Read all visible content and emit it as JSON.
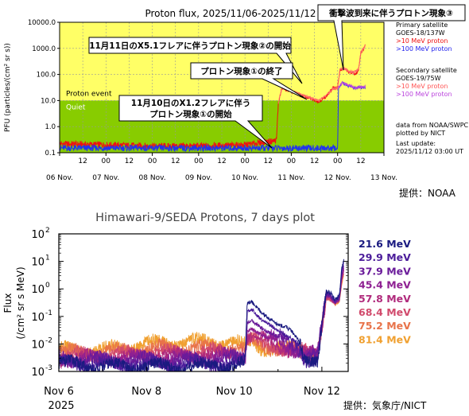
{
  "chart_data": [
    {
      "type": "line",
      "title": "Proton flux, 2025/11/06-2025/11/12",
      "ylabel": "PFU (particles/(cm² sr s))",
      "y_scale": "log",
      "ylim": [
        0.1,
        10000
      ],
      "y_ticks": [
        "0.1",
        "1.0",
        "10.0",
        "100.0",
        "1000.0",
        "10000.0"
      ],
      "x_major_labels": [
        "06 Nov.",
        "07 Nov.",
        "08 Nov.",
        "09 Nov.",
        "10 Nov.",
        "11 Nov.",
        "12 Nov.",
        "13 Nov."
      ],
      "x_minor_label": "12",
      "x_minor_label_short": "00",
      "xlim_days": [
        0,
        7
      ],
      "bands": [
        {
          "label": "Proton event",
          "from": 10,
          "to": 10000,
          "color": "#ffff66"
        },
        {
          "label": "Quiet",
          "from": 0.1,
          "to": 10,
          "color": "#88cc00"
        }
      ],
      "legend": {
        "primary_title": "Primary satellite",
        "primary_sat": "GOES-18/137W",
        "secondary_title": "Secondary satellite",
        "secondary_sat": "GOES-19/75W",
        "s10": ">10 MeV proton",
        "s100": ">100 MeV proton",
        "source1": "data from NOAA/SWPC",
        "source2": "plotted by NICT",
        "update1": "Last update:",
        "update2": "2025/11/12 03:00 UT"
      },
      "series": [
        {
          "name": ">10 MeV proton",
          "color": "#ee1111",
          "x": [
            0,
            1,
            2,
            3,
            4,
            4.6,
            4.68,
            4.72,
            4.8,
            5.0,
            5.2,
            5.4,
            5.6,
            5.75,
            5.9,
            6.0,
            6.05,
            6.15,
            6.25,
            6.35,
            6.4,
            6.45,
            6.5,
            6.55,
            6.6
          ],
          "y": [
            0.22,
            0.2,
            0.18,
            0.18,
            0.2,
            0.28,
            0.3,
            8,
            30,
            22,
            16,
            12,
            9,
            14,
            30,
            32,
            150,
            160,
            120,
            110,
            100,
            150,
            700,
            900,
            1300
          ]
        },
        {
          "name": ">100 MeV proton",
          "color": "#2233ee",
          "x": [
            0,
            1,
            2,
            3,
            4,
            4.6,
            4.68,
            4.72,
            4.9,
            5.2,
            5.5,
            5.7,
            5.75,
            5.85,
            5.92,
            5.97,
            6.0,
            6.02,
            6.1,
            6.2,
            6.3,
            6.35,
            6.4,
            6.5,
            6.6
          ],
          "y": [
            0.15,
            0.15,
            0.15,
            0.15,
            0.15,
            0.15,
            0.15,
            0.15,
            0.15,
            0.15,
            0.15,
            0.15,
            0.15,
            0.15,
            0.15,
            0.15,
            0.15,
            30,
            48,
            38,
            35,
            30,
            30,
            32,
            32
          ]
        },
        {
          "name": ">10 MeV proton (secondary)",
          "color": "#ff6a6a",
          "x": [
            4.72,
            4.8,
            5.0,
            5.2,
            5.4,
            5.6,
            5.75,
            5.9,
            6.0,
            6.05,
            6.15,
            6.25,
            6.35,
            6.45,
            6.5,
            6.55,
            6.6
          ],
          "y": [
            8,
            32,
            24,
            17,
            13,
            10,
            15,
            28,
            30,
            160,
            170,
            130,
            118,
            160,
            720,
            950,
            1400
          ]
        },
        {
          "name": ">100 MeV proton (secondary)",
          "color": "#bb44dd",
          "x": [
            6.02,
            6.1,
            6.2,
            6.3,
            6.35,
            6.4,
            6.5,
            6.6
          ],
          "y": [
            32,
            50,
            40,
            36,
            31,
            31,
            33,
            34
          ]
        }
      ],
      "annotations": [
        "11月11日のX5.1フレアに伴うプロトン現象②の開始",
        "プロトン現象①の終了",
        "衝撃波到来に伴うプロトン現象③",
        "11月10日のX1.2フレアに伴う",
        "プロトン現象①の開始"
      ],
      "credit": "提供：NOAA"
    },
    {
      "type": "line",
      "title": "Himawari-9/SEDA Protons, 7 days plot",
      "ylabel_line1": "Flux",
      "ylabel_line2": "(/cm² sr s MeV)",
      "y_scale": "log",
      "ylim": [
        0.001,
        100
      ],
      "y_tick_exps": [
        "2",
        "1",
        "0",
        "-1",
        "-2",
        "-3"
      ],
      "y_tick_base": "10",
      "x_labels": [
        "Nov 6",
        "Nov 8",
        "Nov 10",
        "Nov 12"
      ],
      "x_sublabel": "2025",
      "xlim_days": [
        0,
        6.6
      ],
      "series": [
        {
          "name": "21.6 MeV",
          "color": "#1a1a80",
          "x": [
            0,
            1,
            2,
            3,
            4,
            4.25,
            4.3,
            4.4,
            4.6,
            4.8,
            5.0,
            5.2,
            5.3,
            5.4,
            5.5,
            5.6,
            5.9,
            6.1,
            6.2,
            6.3,
            6.4,
            6.45,
            6.5
          ],
          "y": [
            0.002,
            0.0015,
            0.0015,
            0.0015,
            0.0018,
            0.002,
            0.3,
            0.35,
            0.15,
            0.08,
            0.05,
            0.04,
            0.03,
            0.02,
            0.01,
            0.003,
            0.003,
            0.8,
            0.7,
            0.4,
            0.6,
            5,
            12
          ]
        },
        {
          "name": "29.9 MeV",
          "color": "#4b1c9a",
          "x": [
            0,
            1,
            2,
            3,
            4,
            4.25,
            4.3,
            4.4,
            4.6,
            4.8,
            5.0,
            5.2,
            5.4,
            5.5,
            5.6,
            5.9,
            6.1,
            6.2,
            6.3,
            6.4,
            6.45,
            6.5
          ],
          "y": [
            0.002,
            0.0018,
            0.0018,
            0.0018,
            0.002,
            0.002,
            0.15,
            0.18,
            0.08,
            0.05,
            0.03,
            0.02,
            0.012,
            0.008,
            0.003,
            0.003,
            0.7,
            0.6,
            0.35,
            0.5,
            4,
            9
          ]
        },
        {
          "name": "37.9 MeV",
          "color": "#6a1b9a",
          "x": [
            0,
            1,
            2,
            3,
            4,
            4.25,
            4.3,
            4.4,
            4.6,
            4.8,
            5.0,
            5.2,
            5.4,
            5.5,
            5.6,
            5.9,
            6.1,
            6.2,
            6.3,
            6.4,
            6.45,
            6.5
          ],
          "y": [
            0.003,
            0.0025,
            0.0025,
            0.0025,
            0.003,
            0.003,
            0.06,
            0.07,
            0.04,
            0.025,
            0.018,
            0.012,
            0.008,
            0.006,
            0.004,
            0.004,
            0.6,
            0.55,
            0.33,
            0.45,
            3,
            7
          ]
        },
        {
          "name": "45.4 MeV",
          "color": "#8e1f92",
          "x": [
            0,
            1,
            2,
            3,
            4,
            4.25,
            4.3,
            4.4,
            4.6,
            4.8,
            5.0,
            5.2,
            5.4,
            5.5,
            5.6,
            5.9,
            6.1,
            6.2,
            6.3,
            6.4,
            6.45,
            6.5
          ],
          "y": [
            0.003,
            0.0028,
            0.003,
            0.003,
            0.0035,
            0.003,
            0.03,
            0.035,
            0.022,
            0.016,
            0.012,
            0.009,
            0.007,
            0.006,
            0.004,
            0.004,
            0.55,
            0.5,
            0.32,
            0.42,
            2.5,
            6
          ]
        },
        {
          "name": "57.8 MeV",
          "color": "#b02a7c",
          "x": [
            0,
            1,
            2,
            3,
            4,
            4.25,
            4.3,
            4.4,
            4.6,
            4.8,
            5.0,
            5.2,
            5.4,
            5.5,
            5.6,
            5.9,
            6.1,
            6.2,
            6.3,
            6.4,
            6.45,
            6.5
          ],
          "y": [
            0.003,
            0.003,
            0.0035,
            0.004,
            0.004,
            0.004,
            0.018,
            0.02,
            0.014,
            0.011,
            0.009,
            0.007,
            0.006,
            0.005,
            0.004,
            0.004,
            0.5,
            0.45,
            0.3,
            0.4,
            2,
            5
          ]
        },
        {
          "name": "68.4 MeV",
          "color": "#d14a6c",
          "x": [
            0,
            1,
            2,
            3,
            4,
            4.25,
            4.3,
            4.4,
            4.6,
            4.8,
            5.0,
            5.2,
            5.4,
            5.5,
            5.6,
            5.9,
            6.1,
            6.2,
            6.3,
            6.4,
            6.45,
            6.5
          ],
          "y": [
            0.004,
            0.004,
            0.005,
            0.005,
            0.006,
            0.005,
            0.012,
            0.014,
            0.01,
            0.009,
            0.008,
            0.007,
            0.006,
            0.005,
            0.005,
            0.005,
            0.45,
            0.4,
            0.28,
            0.38,
            1.8,
            4
          ]
        },
        {
          "name": "75.2 MeV",
          "color": "#e8734a",
          "x": [
            0,
            1,
            2,
            3,
            4,
            4.25,
            4.3,
            4.4,
            4.6,
            4.8,
            5.0,
            5.2,
            5.4,
            5.5,
            5.6,
            5.9,
            6.1,
            6.2,
            6.3,
            6.4,
            6.45,
            6.5
          ],
          "y": [
            0.005,
            0.005,
            0.007,
            0.007,
            0.008,
            0.006,
            0.01,
            0.012,
            0.009,
            0.008,
            0.007,
            0.006,
            0.006,
            0.005,
            0.005,
            0.005,
            0.45,
            0.4,
            0.28,
            0.36,
            1.6,
            3.5
          ]
        },
        {
          "name": "81.4 MeV",
          "color": "#f0a030",
          "x": [
            0,
            1,
            2,
            3,
            4,
            4.25,
            4.3,
            4.4,
            4.6,
            4.8,
            5.0,
            5.2,
            5.4,
            5.5,
            5.6,
            5.9,
            6.1,
            6.2,
            6.3,
            6.4,
            6.45,
            6.5
          ],
          "y": [
            0.006,
            0.006,
            0.01,
            0.012,
            0.012,
            0.008,
            0.009,
            0.011,
            0.008,
            0.007,
            0.007,
            0.006,
            0.006,
            0.005,
            0.005,
            0.005,
            0.55,
            0.5,
            0.3,
            0.35,
            1.5,
            3
          ]
        }
      ],
      "credit": "提供：気象庁/NICT"
    }
  ]
}
